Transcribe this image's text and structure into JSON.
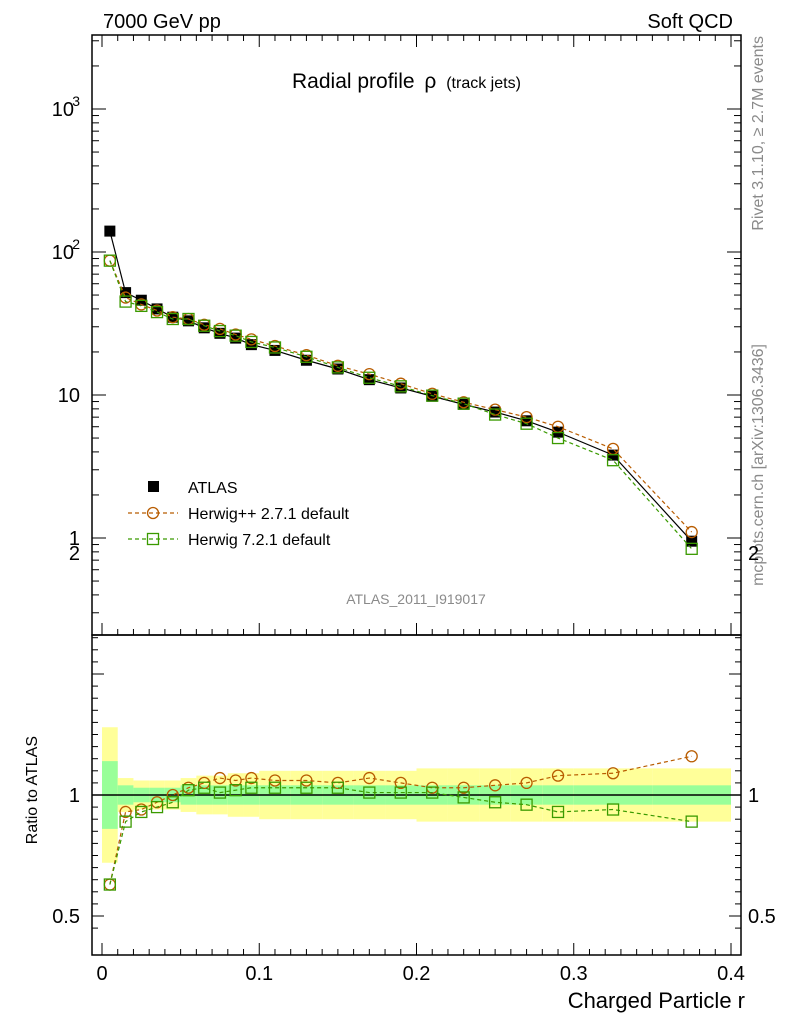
{
  "header": {
    "left": "7000 GeV pp",
    "right": "Soft QCD"
  },
  "side_text": {
    "rivet": "Rivet 3.1.10, ≥ 2.7M events",
    "source": "mcplots.cern.ch [arXiv:1306.3436]"
  },
  "chart_data": {
    "type": "scatter",
    "title": "Radial profile",
    "title_symbol": "ρ",
    "title_suffix": "(track jets)",
    "analysis_tag": "ATLAS_2011_I919017",
    "xlabel": "Charged Particle r",
    "ylabel_ratio": "Ratio to ATLAS",
    "xlim": [
      0,
      0.4
    ],
    "ylim_main": [
      0.2,
      3000
    ],
    "ylim_ratio": [
      0.4,
      2.3
    ],
    "y_scale_main": "log",
    "x_ticks": [
      "0",
      "0.1",
      "0.2",
      "0.3",
      "0.4"
    ],
    "y_ticks_main": [
      "1",
      "10",
      "10^2",
      "10^3"
    ],
    "y_ticks_ratio": [
      "0.5",
      "1",
      "2"
    ],
    "legend_position": "bottom-left",
    "x": [
      0.005,
      0.015,
      0.025,
      0.035,
      0.045,
      0.055,
      0.065,
      0.075,
      0.085,
      0.095,
      0.11,
      0.13,
      0.15,
      0.17,
      0.19,
      0.21,
      0.23,
      0.25,
      0.27,
      0.29,
      0.325,
      0.375
    ],
    "x_edges": [
      0,
      0.01,
      0.02,
      0.03,
      0.04,
      0.05,
      0.06,
      0.07,
      0.08,
      0.09,
      0.1,
      0.12,
      0.14,
      0.16,
      0.18,
      0.2,
      0.22,
      0.24,
      0.26,
      0.28,
      0.3,
      0.35,
      0.4
    ],
    "band_green_halfwidth": [
      0.14,
      0.04,
      0.03,
      0.03,
      0.03,
      0.04,
      0.04,
      0.04,
      0.04,
      0.04,
      0.04,
      0.04,
      0.04,
      0.04,
      0.04,
      0.04,
      0.04,
      0.04,
      0.04,
      0.04,
      0.04,
      0.04
    ],
    "band_yellow_halfwidth": [
      0.28,
      0.07,
      0.06,
      0.06,
      0.06,
      0.07,
      0.08,
      0.08,
      0.09,
      0.09,
      0.1,
      0.1,
      0.1,
      0.1,
      0.1,
      0.11,
      0.11,
      0.11,
      0.11,
      0.11,
      0.11,
      0.11
    ],
    "series": [
      {
        "name": "ATLAS",
        "color": "#000000",
        "marker": "filled-square",
        "values": [
          140,
          52,
          46,
          40,
          35,
          33,
          29.5,
          27,
          25,
          22.5,
          20.5,
          17.5,
          15.2,
          12.8,
          11.2,
          9.8,
          8.6,
          7.6,
          6.6,
          5.5,
          3.8,
          0.95
        ]
      },
      {
        "name": "Herwig++ 2.7.1 default",
        "color": "#b85c00",
        "marker": "open-circle",
        "values": [
          87,
          48,
          43,
          39,
          35,
          34,
          31,
          29,
          26.5,
          24.5,
          22,
          19,
          16,
          14,
          12,
          10.2,
          8.9,
          7.9,
          7.0,
          6.0,
          4.2,
          1.1
        ],
        "ratio": [
          0.63,
          0.93,
          0.94,
          0.97,
          1.0,
          1.03,
          1.05,
          1.07,
          1.06,
          1.07,
          1.06,
          1.06,
          1.05,
          1.07,
          1.05,
          1.03,
          1.03,
          1.04,
          1.05,
          1.08,
          1.09,
          1.16
        ]
      },
      {
        "name": "Herwig 7.2.1 default",
        "color": "#3a9a00",
        "marker": "open-square",
        "values": [
          87,
          45,
          42,
          38,
          34,
          34,
          30.5,
          28,
          26,
          23.5,
          21.5,
          18.5,
          15.6,
          13.2,
          11.5,
          9.9,
          8.7,
          7.3,
          6.3,
          5.0,
          3.5,
          0.84
        ],
        "ratio": [
          0.63,
          0.89,
          0.93,
          0.95,
          0.97,
          1.02,
          1.03,
          1.01,
          1.02,
          1.03,
          1.03,
          1.03,
          1.03,
          1.01,
          1.01,
          1.01,
          0.99,
          0.97,
          0.96,
          0.93,
          0.94,
          0.89
        ]
      }
    ]
  }
}
